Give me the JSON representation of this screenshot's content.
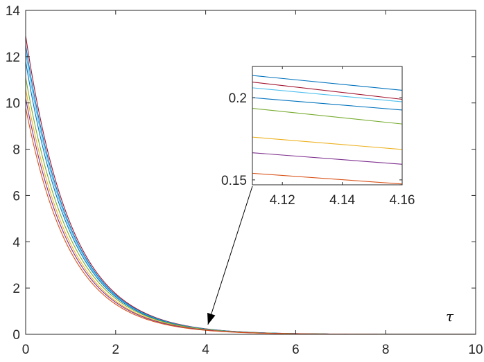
{
  "chart_data": [
    {
      "type": "line",
      "role": "main",
      "title": "",
      "xlabel": "",
      "ylabel": "",
      "annotation": "τ",
      "xlim": [
        0,
        10
      ],
      "ylim": [
        0,
        14
      ],
      "xticks": [
        0,
        2,
        4,
        6,
        8,
        10
      ],
      "xtick_labels": [
        "0",
        "2",
        "4",
        "6",
        "8",
        "10"
      ],
      "yticks": [
        0,
        2,
        4,
        6,
        8,
        10,
        12,
        14
      ],
      "ytick_labels": [
        "0",
        "2",
        "4",
        "6",
        "8",
        "10",
        "12",
        "14"
      ],
      "grid": false,
      "series": [
        {
          "color": "#A2142F",
          "y0": 12.9,
          "y_at_4_12": 0.212
        },
        {
          "color": "#0072BD",
          "y0": 12.5,
          "y_at_4_12": 0.205
        },
        {
          "color": "#4DBEEE",
          "y0": 12.2,
          "y_at_4_12": 0.201
        },
        {
          "color": "#0072BD",
          "y0": 11.8,
          "y_at_4_12": 0.197
        },
        {
          "color": "#77AC30",
          "y0": 11.1,
          "y_at_4_12": 0.19
        },
        {
          "color": "#EDB120",
          "y0": 10.6,
          "y_at_4_12": 0.174
        },
        {
          "color": "#7E2F8E",
          "y0": 10.2,
          "y_at_4_12": 0.166
        },
        {
          "color": "#D95319",
          "y0": 9.8,
          "y_at_4_12": 0.153
        }
      ]
    },
    {
      "type": "line",
      "role": "inset",
      "xlim": [
        4.11,
        4.16
      ],
      "ylim": [
        0.147,
        0.219
      ],
      "xticks": [
        4.12,
        4.14,
        4.16
      ],
      "xtick_labels": [
        "4.12",
        "4.14",
        "4.16"
      ],
      "yticks": [
        0.15,
        0.2
      ],
      "ytick_labels": [
        "0.15",
        "0.2"
      ],
      "pointer_target": [
        4.05,
        0.3
      ],
      "series": [
        {
          "color": "#0072BD",
          "x": [
            4.11,
            4.16
          ],
          "y": [
            0.2135,
            0.2045
          ]
        },
        {
          "color": "#A2142F",
          "x": [
            4.11,
            4.16
          ],
          "y": [
            0.2095,
            0.199
          ]
        },
        {
          "color": "#4DBEEE",
          "x": [
            4.11,
            4.16
          ],
          "y": [
            0.206,
            0.1975
          ]
        },
        {
          "color": "#0072BD",
          "x": [
            4.11,
            4.16
          ],
          "y": [
            0.2,
            0.1925
          ]
        },
        {
          "color": "#77AC30",
          "x": [
            4.11,
            4.16
          ],
          "y": [
            0.1935,
            0.184
          ]
        },
        {
          "color": "#EDB120",
          "x": [
            4.11,
            4.16
          ],
          "y": [
            0.176,
            0.1685
          ]
        },
        {
          "color": "#7E2F8E",
          "x": [
            4.11,
            4.16
          ],
          "y": [
            0.1665,
            0.1595
          ]
        },
        {
          "color": "#D95319",
          "x": [
            4.11,
            4.16
          ],
          "y": [
            0.154,
            0.1475
          ]
        }
      ]
    }
  ]
}
